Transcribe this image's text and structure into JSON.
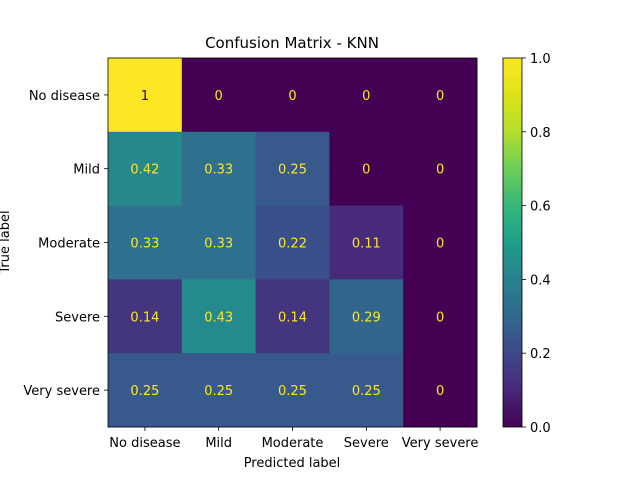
{
  "chart_data": {
    "type": "heatmap",
    "title": "Confusion Matrix - KNN",
    "xlabel": "Predicted label",
    "ylabel": "True label",
    "x_categories": [
      "No disease",
      "Mild",
      "Moderate",
      "Severe",
      "Very severe"
    ],
    "y_categories": [
      "No disease",
      "Mild",
      "Moderate",
      "Severe",
      "Very severe"
    ],
    "values": [
      [
        1,
        0,
        0,
        0,
        0
      ],
      [
        0.42,
        0.33,
        0.25,
        0,
        0
      ],
      [
        0.33,
        0.33,
        0.22,
        0.11,
        0
      ],
      [
        0.14,
        0.43,
        0.14,
        0.29,
        0
      ],
      [
        0.25,
        0.25,
        0.25,
        0.25,
        0
      ]
    ],
    "colormap": "viridis",
    "colorbar": {
      "range": [
        0.0,
        1.0
      ],
      "ticks": [
        "0.0",
        "0.2",
        "0.4",
        "0.6",
        "0.8",
        "1.0"
      ]
    },
    "annotation_color_dark_cells": "#fde725",
    "annotation_color_light_cells": "#440154"
  }
}
